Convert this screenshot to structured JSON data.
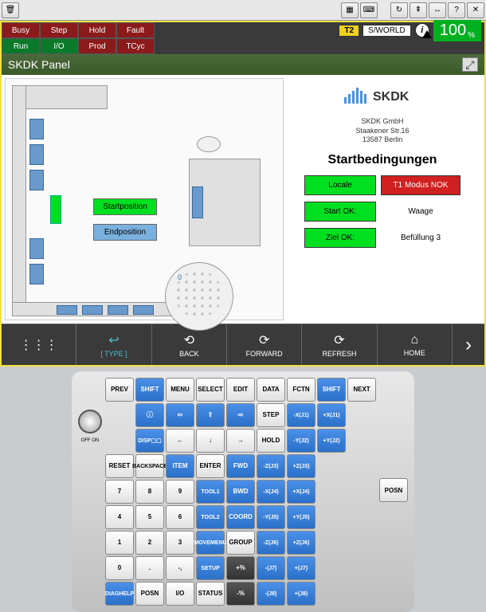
{
  "top_toolbar": {
    "left_icons": [
      "🗑"
    ],
    "right_icons": [
      "▦",
      "⌨",
      "↻",
      "⇞",
      "↔",
      "?",
      "✕"
    ]
  },
  "status": {
    "row1": [
      {
        "label": "Busy",
        "cls": "red"
      },
      {
        "label": "Step",
        "cls": "red"
      },
      {
        "label": "Hold",
        "cls": "red"
      },
      {
        "label": "Fault",
        "cls": "red"
      }
    ],
    "row2": [
      {
        "label": "Run",
        "cls": "green"
      },
      {
        "label": "I/O",
        "cls": "green"
      },
      {
        "label": "Prod",
        "cls": "red"
      },
      {
        "label": "TCyc",
        "cls": "red"
      }
    ],
    "t2": "T2",
    "world": "S/WORLD",
    "percent": "100",
    "percent_sym": "%"
  },
  "panel_title": "SKDK Panel",
  "floor_plan": {
    "start_btn": "Startposition",
    "end_btn": "Endposition",
    "small_label": "0"
  },
  "side": {
    "logo_text": "SKDK",
    "logo_sub": "",
    "company_name": "SKDK GmbH",
    "company_addr1": "Staakener Str.16",
    "company_addr2": "13587 Berlin",
    "title": "Startbedingungen",
    "locale_btn": "Locale",
    "t1_btn": "T1 Modus NOK",
    "startok_btn": "Start OK:",
    "startok_label": "Waage",
    "zielok_btn": "Ziel OK:",
    "zielok_label": "Befüllung 3"
  },
  "nav": {
    "type": "[ TYPE ]",
    "back": "BACK",
    "forward": "FORWARD",
    "refresh": "REFRESH",
    "home": "HOME"
  },
  "pendant": {
    "prev": "PREV",
    "off_on": "OFF  ON",
    "posn_side": "POSN",
    "next": "NEXT",
    "rows": [
      [
        {
          "t": "PREV"
        },
        {
          "t": "SHIFT",
          "c": "blue"
        },
        {
          "t": "MENU"
        },
        {
          "t": "SELECT"
        },
        {
          "t": "EDIT"
        },
        {
          "t": "DATA"
        },
        {
          "t": "FCTN"
        },
        {
          "t": "SHIFT",
          "c": "blue"
        },
        {
          "t": "NEXT"
        }
      ],
      [
        {
          "t": ""
        },
        {
          "t": "ⓘ",
          "c": "blue"
        },
        {
          "t": "⇦",
          "c": "blue"
        },
        {
          "t": "⇧",
          "c": "blue"
        },
        {
          "t": "⇨",
          "c": "blue"
        },
        {
          "t": "STEP"
        },
        {
          "t": "-X|(J1)",
          "c": "blue"
        },
        {
          "t": "+X|(J1)",
          "c": "blue"
        },
        {
          "t": ""
        }
      ],
      [
        {
          "t": ""
        },
        {
          "t": "DISP|▢▢",
          "c": "blue"
        },
        {
          "t": "←"
        },
        {
          "t": "↓"
        },
        {
          "t": "→"
        },
        {
          "t": "HOLD"
        },
        {
          "t": "-Y|(J2)",
          "c": "blue"
        },
        {
          "t": "+Y|(J2)",
          "c": "blue"
        },
        {
          "t": ""
        }
      ],
      [
        {
          "t": "RESET"
        },
        {
          "t": "BACK|SPACE"
        },
        {
          "t": "ITEM",
          "c": "blue"
        },
        {
          "t": "ENTER"
        },
        {
          "t": "FWD",
          "c": "blue"
        },
        {
          "t": "-Z|(J3)",
          "c": "blue"
        },
        {
          "t": "+Z|(J3)",
          "c": "blue"
        },
        {
          "t": ""
        },
        {
          "t": ""
        }
      ],
      [
        {
          "t": "7"
        },
        {
          "t": "8"
        },
        {
          "t": "9"
        },
        {
          "t": "TOOL|1",
          "c": "blue"
        },
        {
          "t": "BWD",
          "c": "blue"
        },
        {
          "t": "-X|(J4)",
          "c": "blue"
        },
        {
          "t": "+X|(J4)",
          "c": "blue"
        },
        {
          "t": ""
        },
        {
          "t": ""
        }
      ],
      [
        {
          "t": "4"
        },
        {
          "t": "5"
        },
        {
          "t": "6"
        },
        {
          "t": "TOOL|2",
          "c": "blue"
        },
        {
          "t": "COORD",
          "c": "blue"
        },
        {
          "t": "-Y|(J5)",
          "c": "blue"
        },
        {
          "t": "+Y|(J5)",
          "c": "blue"
        },
        {
          "t": ""
        },
        {
          "t": ""
        }
      ],
      [
        {
          "t": "1"
        },
        {
          "t": "2"
        },
        {
          "t": "3"
        },
        {
          "t": "MOVE|MENU",
          "c": "blue"
        },
        {
          "t": "GROUP"
        },
        {
          "t": "-Z|(J6)",
          "c": "blue"
        },
        {
          "t": "+Z|(J6)",
          "c": "blue"
        },
        {
          "t": ""
        },
        {
          "t": ""
        }
      ],
      [
        {
          "t": "0"
        },
        {
          "t": "."
        },
        {
          "t": "-|,"
        },
        {
          "t": "SET|UP",
          "c": "blue"
        },
        {
          "t": "+%",
          "c": "dark"
        },
        {
          "t": "-|(J7)",
          "c": "blue"
        },
        {
          "t": "+|(J7)",
          "c": "blue"
        },
        {
          "t": ""
        },
        {
          "t": ""
        }
      ],
      [
        {
          "t": "DIAG|HELP",
          "c": "blue"
        },
        {
          "t": "POSN"
        },
        {
          "t": "I/O"
        },
        {
          "t": "STATUS"
        },
        {
          "t": "-%",
          "c": "dark"
        },
        {
          "t": "-|(J8)",
          "c": "blue"
        },
        {
          "t": "+|(J8)",
          "c": "blue"
        },
        {
          "t": ""
        },
        {
          "t": ""
        }
      ]
    ]
  },
  "colors": {
    "green": "#00e020",
    "red": "#d02020",
    "blue": "#4a90e8",
    "yellow": "#f0e040",
    "slot": "#6a9acc"
  }
}
